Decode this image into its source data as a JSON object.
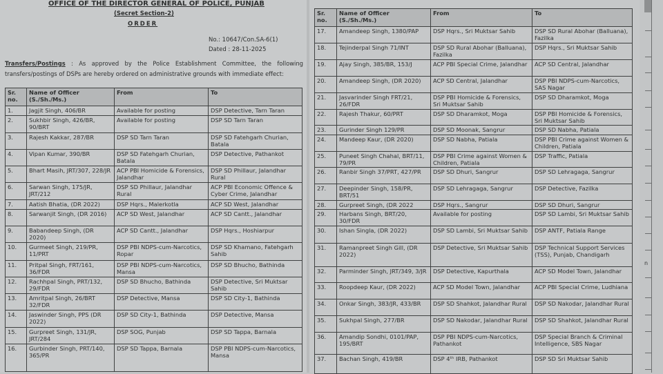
{
  "header": {
    "office": "OFFICE OF THE DIRECTOR GENERAL OF POLICE, PUNJAB",
    "section": "(Secret Section-2)",
    "title": "ORDER",
    "number": "No.: 10647/Con.SA-6(1)",
    "dated": "Dated : 28-11-2025",
    "intro_label": "Transfers/Postings",
    "intro_text": " : As approved by the Police Establishment Committee, the following transfers/postings of DSPs are hereby ordered on administrative grounds with immediate effect:"
  },
  "columns": {
    "sr": "Sr. no.",
    "name": "Name of Officer (S./Sh./Ms.)",
    "from": "From",
    "to": "To"
  },
  "rows": [
    {
      "sr": "1.",
      "name": "Jagjit Singh, 406/BR",
      "from": "Available for posting",
      "to": "DSP Detective, Tarn Taran"
    },
    {
      "sr": "2.",
      "name": "Sukhbir Singh, 426/BR, 90/BRT",
      "from": "Available for posting",
      "to": "DSP SD Tarn Taran"
    },
    {
      "sr": "3.",
      "name": "Rajesh Kakkar, 287/BR",
      "from": "DSP SD Tarn Taran",
      "to": "DSP SD Fatehgarh Churian, Batala"
    },
    {
      "sr": "4.",
      "name": "Vipan Kumar, 390/BR",
      "from": "DSP SD Fatehgarh Churian, Batala",
      "to": "DSP Detective, Pathankot"
    },
    {
      "sr": "5.",
      "name": "Bhart Masih, JRT/307, 228/JR",
      "from": "ACP PBI Homicide & Forensics, Jalandhar",
      "to": "DSP SD Phillaur, Jalandhar Rural"
    },
    {
      "sr": "6.",
      "name": "Sarwan Singh, 175/JR, JRT/212",
      "from": "DSP SD Phillaur, Jalandhar Rural",
      "to": "ACP PBI Economic Offence & Cyber Crime, Jalandhar"
    },
    {
      "sr": "7.",
      "name": "Aatish Bhatia, (DR 2022)",
      "from": "DSP Hqrs., Malerkotla",
      "to": "ACP SD West, Jalandhar"
    },
    {
      "sr": "8.",
      "name": "Sarwanjit Singh, (DR 2016)",
      "from": "ACP SD West, Jalandhar",
      "to": "ACP SD Cantt., Jalandhar"
    },
    {
      "sr": "9.",
      "name": "Babandeep Singh, (DR 2020)",
      "from": "ACP SD Cantt., Jalandhar",
      "to": "DSP Hqrs., Hoshiarpur"
    },
    {
      "sr": "10.",
      "name": "Gurmeet Singh, 219/PR, 11/PRT",
      "from": "DSP PBI NDPS-cum-Narcotics, Ropar",
      "to": "DSP SD Khamano, Fatehgarh Sahib"
    },
    {
      "sr": "11.",
      "name": "Pritpal Singh, FRT/161, 36/FDR",
      "from": "DSP PBI NDPS-cum-Narcotics, Mansa",
      "to": "DSP SD Bhucho, Bathinda"
    },
    {
      "sr": "12.",
      "name": "Rachhpal Singh, PRT/132, 29/FDR",
      "from": "DSP SD Bhucho, Bathinda",
      "to": "DSP Detective, Sri Muktsar Sahib"
    },
    {
      "sr": "13.",
      "name": "Amritpal Singh, 26/BRT 32/FDR",
      "from": "DSP Detective, Mansa",
      "to": "DSP SD City-1, Bathinda"
    },
    {
      "sr": "14.",
      "name": "Jaswinder Singh, PPS (DR 2022)",
      "from": "DSP SD City-1, Bathinda",
      "to": "DSP Detective, Mansa"
    },
    {
      "sr": "15.",
      "name": "Gurpreet Singh, 131/JR, JRT/284",
      "from": "DSP SOG, Punjab",
      "to": "DSP SD Tappa, Barnala"
    },
    {
      "sr": "16.",
      "name": "Gurbinder Singh, PRT/140, 365/PR",
      "from": "DSP SD Tappa, Barnala",
      "to": "DSP PBI NDPS-cum-Narcotics, Mansa"
    },
    {
      "sr": "17.",
      "name": "Amandeep Singh, 1380/PAP",
      "from": "DSP Hqrs., Sri Muktsar Sahib",
      "to": "DSP SD Rural Abohar (Balluana), Fazilka"
    },
    {
      "sr": "18.",
      "name": "Tejinderpal Singh 71/INT",
      "from": "DSP SD Rural Abohar (Balluana), Fazilka",
      "to": "DSP Hqrs., Sri Muktsar Sahib"
    },
    {
      "sr": "19.",
      "name": "Ajay Singh, 385/BR, 153/J",
      "from": "ACP PBI Special Crime, Jalandhar",
      "to": "ACP SD Central, Jalandhar"
    },
    {
      "sr": "20.",
      "name": "Amandeep Singh, (DR 2020)",
      "from": "ACP SD Central, Jalandhar",
      "to": "DSP PBI NDPS-cum-Narcotics, SAS Nagar"
    },
    {
      "sr": "21.",
      "name": "Jasvarinder Singh FRT/21, 26/FDR",
      "from": "DSP PBI Homicide & Forensics, Sri Muktsar Sahib",
      "to": "DSP SD Dharamkot, Moga"
    },
    {
      "sr": "22.",
      "name": "Rajesh Thakur, 60/PRT",
      "from": "DSP SD Dharamkot, Moga",
      "to": "DSP PBI Homicide & Forensics, Sri Muktsar Sahib"
    },
    {
      "sr": "23.",
      "name": "Gurinder Singh 129/PR",
      "from": "DSP SD Moonak, Sangrur",
      "to": "DSP SD Nabha, Patiala"
    },
    {
      "sr": "24.",
      "name": "Mandeep Kaur, (DR 2020)",
      "from": "DSP SD Nabha, Patiala",
      "to": "DSP PBI Crime against Women & Children, Patiala"
    },
    {
      "sr": "25.",
      "name": "Puneet Singh Chahal, BRT/11, 79/PR",
      "from": "DSP PBI Crime against Women & Children, Patiala",
      "to": "DSP Traffic, Patiala"
    },
    {
      "sr": "26.",
      "name": "Ranbir Singh 37/PRT, 427/PR",
      "from": "DSP SD Dhuri, Sangrur",
      "to": "DSP SD Lehragaga, Sangrur"
    },
    {
      "sr": "27.",
      "name": "Deepinder Singh, 158/PR, BRT/51",
      "from": "DSP SD Lehragaga, Sangrur",
      "to": "DSP Detective, Fazilka"
    },
    {
      "sr": "28.",
      "name": "Gurpreet Singh, (DR 2022",
      "from": "DSP Hqrs., Sangrur",
      "to": "DSP SD Dhuri, Sangrur"
    },
    {
      "sr": "29.",
      "name": "Harbans Singh, BRT/20, 30/FDR",
      "from": "Available for posting",
      "to": "DSP SD Lambi, Sri Muktsar Sahib"
    },
    {
      "sr": "30.",
      "name": "Ishan Singla, (DR 2022)",
      "from": "DSP SD Lambi, Sri Muktsar Sahib",
      "to": "DSP ANTF, Patiala Range"
    },
    {
      "sr": "31.",
      "name": "Ramanpreet Singh Gill, (DR 2022)",
      "from": "DSP Detective, Sri Muktsar Sahib",
      "to": "DSP Technical Support Services (TSS), Punjab, Chandigarh"
    },
    {
      "sr": "32.",
      "name": "Parminder Singh, JRT/349, 3/JR",
      "from": "DSP Detective, Kapurthala",
      "to": "ACP SD Model Town, Jalandhar"
    },
    {
      "sr": "33.",
      "name": "Roopdeep Kaur, (DR 2022)",
      "from": "ACP SD Model Town, Jalandhar",
      "to": "ACP PBI Special Crime, Ludhiana"
    },
    {
      "sr": "34.",
      "name": "Onkar Singh, 383/JR, 433/BR",
      "from": "DSP SD Shahkot, Jalandhar Rural",
      "to": "DSP SD Nakodar, Jalandhar Rural"
    },
    {
      "sr": "35.",
      "name": "Sukhpal Singh, 277/BR",
      "from": "DSP SD Nakodar, Jalandhar Rural",
      "to": "DSP SD Shahkot, Jalandhar Rural"
    },
    {
      "sr": "36.",
      "name": "Amandip Sondhi, 0101/PAP, 195/BRT",
      "from": "DSP PBI NDPS-cum-Narcotics, Pathankot",
      "to": "DSP Special Branch & Criminal Intelligence, SBS Nagar"
    },
    {
      "sr": "37.",
      "name": "Bachan Singh, 419/BR",
      "from": "DSP 4ᵗʰ IRB, Pathankot",
      "to": "DSP SD Sri Muktsar Sahib"
    }
  ],
  "margin_text": "n"
}
